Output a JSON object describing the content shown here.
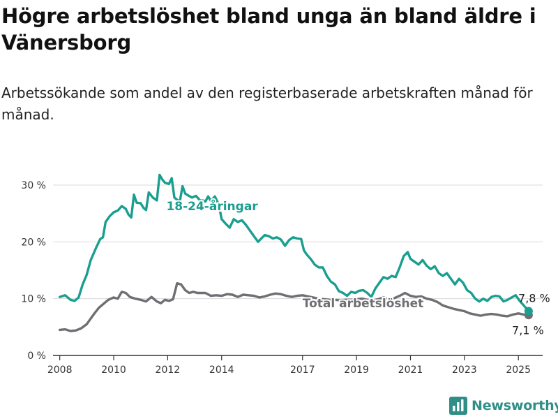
{
  "title": "Högre arbetslöshet bland unga än bland äldre i Vänersborg",
  "subtitle": "Arbetssökande som andel av den registerbaserade arbetskraften månad för månad.",
  "brand": {
    "name": "Newsworthy",
    "icon": "bar-chart-logo-icon"
  },
  "colors": {
    "youth": "#1a9e8f",
    "total": "#6e6e73",
    "grid": "#d9d9d9",
    "axis": "#333333"
  },
  "chart_data": {
    "type": "line",
    "title": "Högre arbetslöshet bland unga än bland äldre i Vänersborg",
    "subtitle": "Arbetssökande som andel av den registerbaserade arbetskraften månad för månad.",
    "xlabel": "",
    "ylabel": "",
    "xlim": [
      2007.75,
      2025.9
    ],
    "ylim": [
      0,
      32
    ],
    "yticks": [
      0,
      10,
      20,
      30
    ],
    "ytick_labels": [
      "0 %",
      "10 %",
      "20 %",
      "30 %"
    ],
    "xticks": [
      2008,
      2010,
      2012,
      2014,
      2017,
      2019,
      2021,
      2023,
      2025
    ],
    "xtick_labels": [
      "2008",
      "2010",
      "2012",
      "2014",
      "2017",
      "2019",
      "2021",
      "2023",
      "2025"
    ],
    "grid": true,
    "legend": "none",
    "series": [
      {
        "name": "18-24-åringar",
        "color": "#1a9e8f",
        "end_label": "7,8 %",
        "points": [
          [
            2008.0,
            10.3
          ],
          [
            2008.2,
            10.6
          ],
          [
            2008.4,
            9.8
          ],
          [
            2008.55,
            9.6
          ],
          [
            2008.7,
            10.2
          ],
          [
            2008.85,
            12.5
          ],
          [
            2009.0,
            14.2
          ],
          [
            2009.15,
            16.8
          ],
          [
            2009.35,
            19.0
          ],
          [
            2009.5,
            20.5
          ],
          [
            2009.6,
            20.8
          ],
          [
            2009.7,
            23.5
          ],
          [
            2009.85,
            24.5
          ],
          [
            2010.0,
            25.2
          ],
          [
            2010.15,
            25.5
          ],
          [
            2010.3,
            26.3
          ],
          [
            2010.45,
            25.8
          ],
          [
            2010.55,
            24.8
          ],
          [
            2010.65,
            24.3
          ],
          [
            2010.75,
            28.3
          ],
          [
            2010.85,
            26.9
          ],
          [
            2011.0,
            26.8
          ],
          [
            2011.1,
            26.0
          ],
          [
            2011.2,
            25.6
          ],
          [
            2011.3,
            28.7
          ],
          [
            2011.45,
            27.8
          ],
          [
            2011.6,
            27.3
          ],
          [
            2011.7,
            31.8
          ],
          [
            2011.8,
            31.0
          ],
          [
            2011.9,
            30.4
          ],
          [
            2012.05,
            30.2
          ],
          [
            2012.15,
            31.2
          ],
          [
            2012.25,
            27.8
          ],
          [
            2012.35,
            27.4
          ],
          [
            2012.45,
            27.1
          ],
          [
            2012.55,
            29.8
          ],
          [
            2012.65,
            28.5
          ],
          [
            2012.75,
            28.2
          ],
          [
            2012.9,
            27.8
          ],
          [
            2013.05,
            28.1
          ],
          [
            2013.2,
            27.3
          ],
          [
            2013.3,
            27.3
          ],
          [
            2013.4,
            27.1
          ],
          [
            2013.5,
            28.0
          ],
          [
            2013.6,
            27.2
          ],
          [
            2013.75,
            28.0
          ],
          [
            2013.9,
            26.5
          ],
          [
            2014.0,
            24.0
          ],
          [
            2014.15,
            23.2
          ],
          [
            2014.3,
            22.5
          ],
          [
            2014.45,
            24.0
          ],
          [
            2014.6,
            23.5
          ],
          [
            2014.75,
            23.8
          ],
          [
            2014.9,
            23.0
          ],
          [
            2015.05,
            22.0
          ],
          [
            2015.2,
            21.0
          ],
          [
            2015.35,
            20.0
          ],
          [
            2015.45,
            20.5
          ],
          [
            2015.6,
            21.2
          ],
          [
            2015.75,
            21.0
          ],
          [
            2015.9,
            20.6
          ],
          [
            2016.05,
            20.8
          ],
          [
            2016.2,
            20.4
          ],
          [
            2016.35,
            19.3
          ],
          [
            2016.5,
            20.3
          ],
          [
            2016.65,
            20.8
          ],
          [
            2016.8,
            20.6
          ],
          [
            2016.95,
            20.5
          ],
          [
            2017.05,
            18.5
          ],
          [
            2017.15,
            17.8
          ],
          [
            2017.3,
            17.0
          ],
          [
            2017.45,
            16.0
          ],
          [
            2017.6,
            15.5
          ],
          [
            2017.75,
            15.5
          ],
          [
            2017.9,
            14.0
          ],
          [
            2018.05,
            13.0
          ],
          [
            2018.2,
            12.5
          ],
          [
            2018.35,
            11.3
          ],
          [
            2018.5,
            11.0
          ],
          [
            2018.65,
            10.5
          ],
          [
            2018.8,
            11.2
          ],
          [
            2018.95,
            11.0
          ],
          [
            2019.1,
            11.4
          ],
          [
            2019.25,
            11.5
          ],
          [
            2019.4,
            11.0
          ],
          [
            2019.55,
            10.3
          ],
          [
            2019.7,
            11.8
          ],
          [
            2019.85,
            12.8
          ],
          [
            2020.0,
            13.8
          ],
          [
            2020.15,
            13.5
          ],
          [
            2020.3,
            14.0
          ],
          [
            2020.45,
            13.8
          ],
          [
            2020.6,
            15.5
          ],
          [
            2020.75,
            17.5
          ],
          [
            2020.9,
            18.2
          ],
          [
            2021.0,
            17.0
          ],
          [
            2021.15,
            16.5
          ],
          [
            2021.3,
            16.0
          ],
          [
            2021.45,
            16.8
          ],
          [
            2021.6,
            15.8
          ],
          [
            2021.75,
            15.2
          ],
          [
            2021.9,
            15.7
          ],
          [
            2022.05,
            14.5
          ],
          [
            2022.2,
            14.0
          ],
          [
            2022.35,
            14.5
          ],
          [
            2022.5,
            13.5
          ],
          [
            2022.65,
            12.5
          ],
          [
            2022.8,
            13.5
          ],
          [
            2022.95,
            12.8
          ],
          [
            2023.1,
            11.5
          ],
          [
            2023.25,
            11.0
          ],
          [
            2023.4,
            10.0
          ],
          [
            2023.55,
            9.5
          ],
          [
            2023.7,
            10.0
          ],
          [
            2023.85,
            9.6
          ],
          [
            2024.0,
            10.3
          ],
          [
            2024.15,
            10.5
          ],
          [
            2024.3,
            10.4
          ],
          [
            2024.45,
            9.5
          ],
          [
            2024.6,
            9.8
          ],
          [
            2024.75,
            10.2
          ],
          [
            2024.9,
            10.6
          ],
          [
            2025.05,
            9.6
          ],
          [
            2025.2,
            8.8
          ],
          [
            2025.38,
            7.8
          ]
        ]
      },
      {
        "name": "Total arbetslöshet",
        "color": "#6e6e73",
        "end_label": "7,1 %",
        "points": [
          [
            2008.0,
            4.5
          ],
          [
            2008.2,
            4.6
          ],
          [
            2008.4,
            4.3
          ],
          [
            2008.6,
            4.4
          ],
          [
            2008.8,
            4.8
          ],
          [
            2009.0,
            5.5
          ],
          [
            2009.15,
            6.5
          ],
          [
            2009.3,
            7.5
          ],
          [
            2009.45,
            8.4
          ],
          [
            2009.6,
            9.0
          ],
          [
            2009.8,
            9.8
          ],
          [
            2010.0,
            10.2
          ],
          [
            2010.15,
            10.0
          ],
          [
            2010.3,
            11.2
          ],
          [
            2010.45,
            11.0
          ],
          [
            2010.6,
            10.3
          ],
          [
            2010.8,
            10.0
          ],
          [
            2011.0,
            9.8
          ],
          [
            2011.2,
            9.5
          ],
          [
            2011.4,
            10.3
          ],
          [
            2011.6,
            9.5
          ],
          [
            2011.75,
            9.2
          ],
          [
            2011.9,
            9.8
          ],
          [
            2012.05,
            9.6
          ],
          [
            2012.2,
            9.9
          ],
          [
            2012.35,
            12.7
          ],
          [
            2012.5,
            12.5
          ],
          [
            2012.65,
            11.5
          ],
          [
            2012.8,
            11.0
          ],
          [
            2012.95,
            11.2
          ],
          [
            2013.1,
            11.0
          ],
          [
            2013.25,
            11.0
          ],
          [
            2013.4,
            11.0
          ],
          [
            2013.6,
            10.5
          ],
          [
            2013.8,
            10.6
          ],
          [
            2014.0,
            10.5
          ],
          [
            2014.2,
            10.8
          ],
          [
            2014.4,
            10.7
          ],
          [
            2014.6,
            10.3
          ],
          [
            2014.8,
            10.7
          ],
          [
            2015.0,
            10.6
          ],
          [
            2015.2,
            10.5
          ],
          [
            2015.4,
            10.2
          ],
          [
            2015.6,
            10.4
          ],
          [
            2015.8,
            10.7
          ],
          [
            2016.0,
            10.9
          ],
          [
            2016.2,
            10.8
          ],
          [
            2016.4,
            10.5
          ],
          [
            2016.6,
            10.3
          ],
          [
            2016.8,
            10.5
          ],
          [
            2017.0,
            10.6
          ],
          [
            2017.2,
            10.4
          ],
          [
            2017.4,
            10.2
          ],
          [
            2017.6,
            10.0
          ],
          [
            2017.8,
            9.9
          ],
          [
            2018.0,
            9.8
          ],
          [
            2018.2,
            9.8
          ],
          [
            2018.4,
            9.7
          ],
          [
            2018.6,
            9.8
          ],
          [
            2018.8,
            9.8
          ],
          [
            2019.0,
            9.9
          ],
          [
            2019.2,
            10.0
          ],
          [
            2019.4,
            9.8
          ],
          [
            2019.6,
            9.7
          ],
          [
            2019.8,
            9.9
          ],
          [
            2020.0,
            10.2
          ],
          [
            2020.2,
            10.0
          ],
          [
            2020.4,
            10.1
          ],
          [
            2020.6,
            10.5
          ],
          [
            2020.8,
            11.0
          ],
          [
            2021.0,
            10.5
          ],
          [
            2021.2,
            10.3
          ],
          [
            2021.4,
            10.4
          ],
          [
            2021.6,
            10.0
          ],
          [
            2021.8,
            9.8
          ],
          [
            2022.0,
            9.4
          ],
          [
            2022.2,
            8.8
          ],
          [
            2022.4,
            8.5
          ],
          [
            2022.6,
            8.2
          ],
          [
            2022.8,
            8.0
          ],
          [
            2023.0,
            7.8
          ],
          [
            2023.2,
            7.4
          ],
          [
            2023.4,
            7.2
          ],
          [
            2023.6,
            7.0
          ],
          [
            2023.8,
            7.2
          ],
          [
            2024.0,
            7.3
          ],
          [
            2024.2,
            7.2
          ],
          [
            2024.4,
            7.0
          ],
          [
            2024.6,
            6.9
          ],
          [
            2024.8,
            7.2
          ],
          [
            2025.0,
            7.4
          ],
          [
            2025.2,
            7.2
          ],
          [
            2025.38,
            7.1
          ]
        ]
      }
    ]
  }
}
